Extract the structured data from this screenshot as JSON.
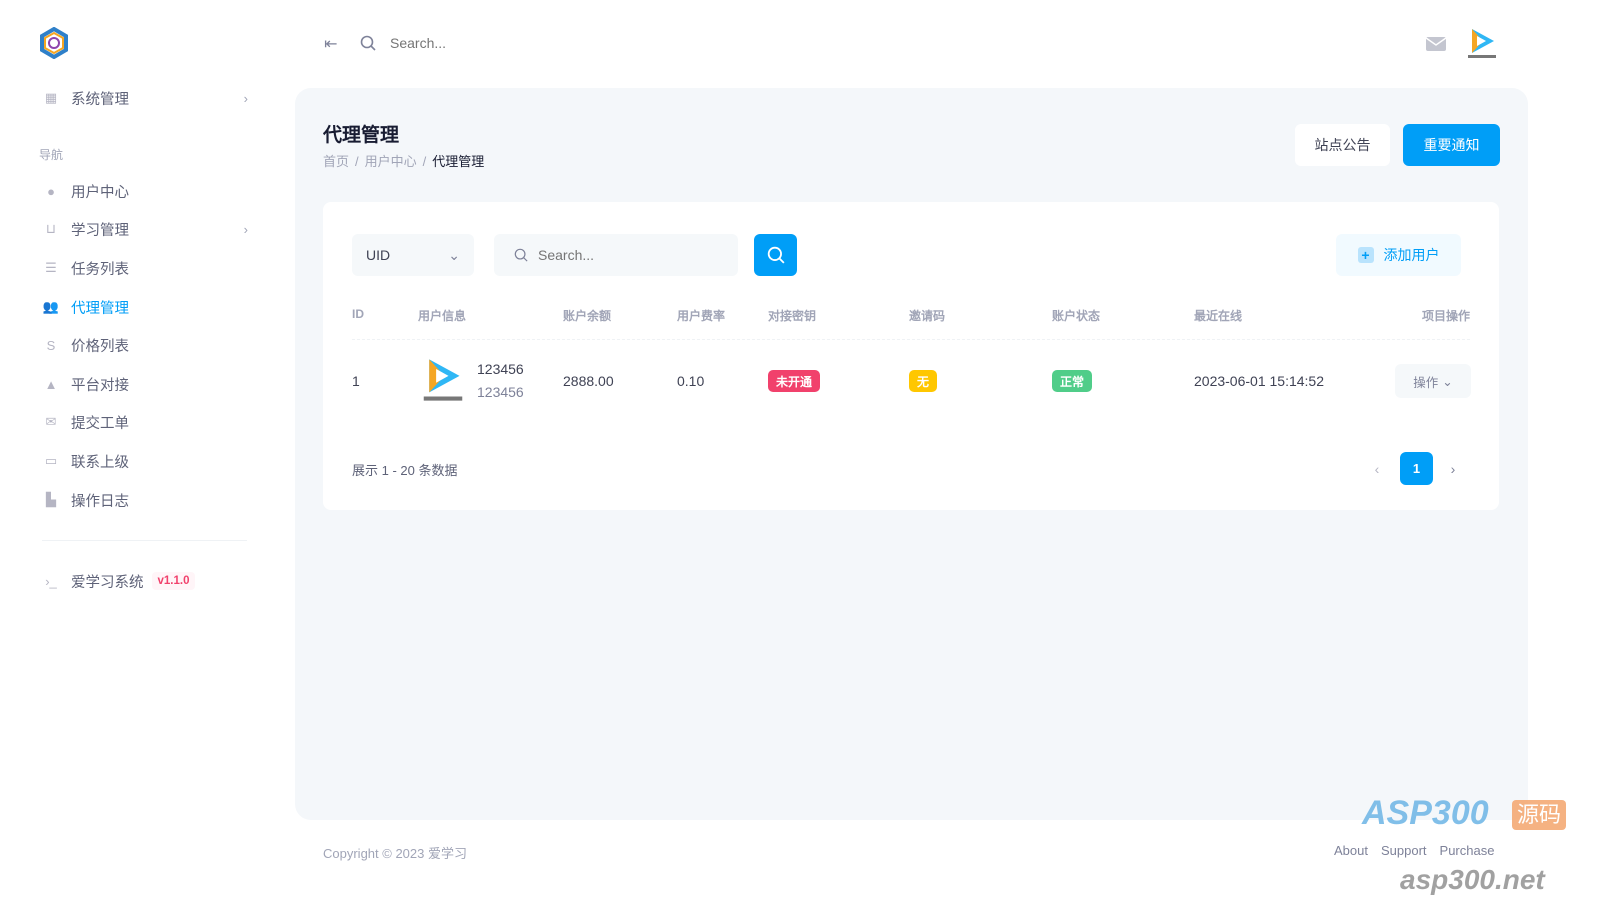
{
  "topbar": {
    "search_placeholder": "Search..."
  },
  "sidebar": {
    "top_item": {
      "label": "系统管理",
      "icon": "grid-icon"
    },
    "section": "导航",
    "items": [
      {
        "label": "用户中心",
        "icon": "user-icon"
      },
      {
        "label": "学习管理",
        "icon": "cart-icon",
        "has_children": true
      },
      {
        "label": "任务列表",
        "icon": "list-icon"
      },
      {
        "label": "代理管理",
        "icon": "users-icon",
        "active": true
      },
      {
        "label": "价格列表",
        "icon": "dollar-icon"
      },
      {
        "label": "平台对接",
        "icon": "triangle-icon"
      },
      {
        "label": "提交工单",
        "icon": "envelope-icon"
      },
      {
        "label": "联系上级",
        "icon": "message-icon"
      },
      {
        "label": "操作日志",
        "icon": "chart-icon"
      }
    ],
    "footer_item": {
      "label": "爱学习系统",
      "version": "v1.1.0"
    }
  },
  "page": {
    "title": "代理管理",
    "breadcrumb": [
      "首页",
      "用户中心",
      "代理管理"
    ],
    "btn_notice": "站点公告",
    "btn_important": "重要通知"
  },
  "toolbar": {
    "select_value": "UID",
    "search_placeholder": "Search...",
    "add_user": "添加用户"
  },
  "table": {
    "headers": [
      "ID",
      "用户信息",
      "账户余额",
      "用户费率",
      "对接密钥",
      "邀请码",
      "账户状态",
      "最近在线",
      "项目操作"
    ],
    "rows": [
      {
        "id": "1",
        "name": "123456",
        "account": "123456",
        "balance": "2888.00",
        "rate": "0.10",
        "key": "未开通",
        "invite": "无",
        "status": "正常",
        "last_online": "2023-06-01 15:14:52",
        "action": "操作"
      }
    ]
  },
  "pagination": {
    "info": "展示 1 - 20 条数据",
    "current": "1"
  },
  "footer": {
    "copyright": "Copyright © 2023 爱学习",
    "links": [
      "About",
      "Support",
      "Purchase"
    ]
  },
  "watermark": {
    "text1": "ASP300",
    "text2": "源码",
    "text3": "asp300.net"
  },
  "colors": {
    "primary": "#009ef7",
    "danger": "#f1416c",
    "warning": "#ffc700",
    "success": "#50cd89"
  }
}
